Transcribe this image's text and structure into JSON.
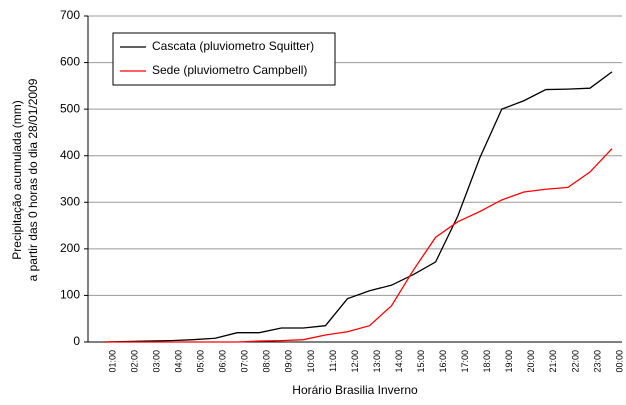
{
  "chart_data": {
    "type": "line",
    "x_label": "Horário Brasilia Inverno",
    "y_label": [
      "Precipitação acumulada (mm)",
      "a partir das 0 horas do dia 28/01/2009"
    ],
    "categories": [
      "01:00",
      "02:00",
      "03:00",
      "04:00",
      "05:00",
      "06:00",
      "07:00",
      "08:00",
      "09:00",
      "10:00",
      "11:00",
      "12:00",
      "13:00",
      "14:00",
      "15:00",
      "16:00",
      "17:00",
      "18:00",
      "19:00",
      "20:00",
      "21:00",
      "22:00",
      "23:00",
      "00:00"
    ],
    "series": [
      {
        "name": "Cascata (pluviometro Squitter)",
        "color": "#000000",
        "values": [
          0,
          1,
          2,
          3,
          5,
          8,
          20,
          20,
          30,
          30,
          35,
          93,
          110,
          122,
          145,
          172,
          270,
          395,
          500,
          518,
          542,
          543,
          545,
          580
        ]
      },
      {
        "name": "Sede (pluviometro Campbell)",
        "color": "#ff0000",
        "values": [
          0,
          0,
          0,
          0,
          0,
          0,
          0,
          2,
          3,
          5,
          15,
          22,
          35,
          78,
          155,
          225,
          258,
          280,
          305,
          322,
          328,
          332,
          365,
          415
        ]
      }
    ],
    "ylim": [
      0,
      700
    ],
    "yticks": [
      0,
      100,
      200,
      300,
      400,
      500,
      600,
      700
    ],
    "grid": true,
    "legend": "upper left"
  }
}
